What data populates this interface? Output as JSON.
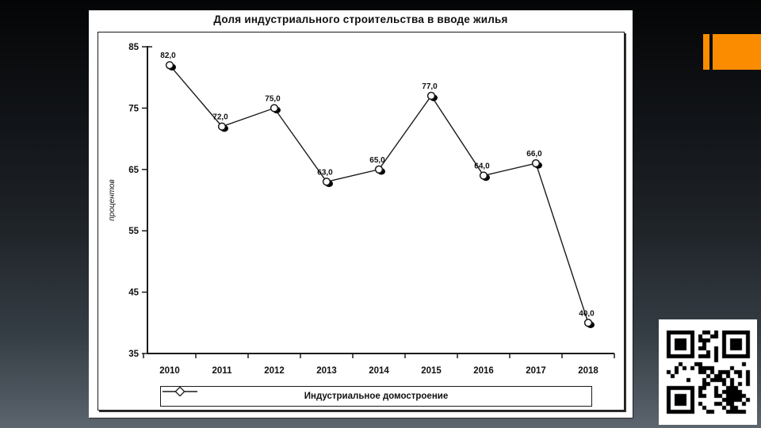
{
  "slide": {
    "accent_color": "#FB8C00",
    "card_background": "#ffffff",
    "background_top": "#040506",
    "background_bottom": "#5d666e"
  },
  "chart_data": {
    "type": "line",
    "title": "Доля индустриального строительства в вводе жилья",
    "xlabel": "",
    "ylabel": "процентов",
    "categories": [
      "2010",
      "2011",
      "2012",
      "2013",
      "2014",
      "2015",
      "2016",
      "2017",
      "2018"
    ],
    "series": [
      {
        "name": "Индустриальное домостроение",
        "values": [
          82.0,
          72.0,
          75.0,
          63.0,
          65.0,
          77.0,
          64.0,
          66.0,
          40.0
        ]
      }
    ],
    "data_labels": [
      "82,0",
      "72,0",
      "75,0",
      "63,0",
      "65,0",
      "77,0",
      "64,0",
      "66,0",
      "40,0"
    ],
    "ylim": [
      35,
      85
    ],
    "ytick_step": 10,
    "ytick_labels": [
      "85",
      "75",
      "65",
      "55",
      "45",
      "35"
    ],
    "grid": false,
    "legend_position": "bottom",
    "marker": "white-circle-with-shadow",
    "line_color": "#1a1a1a"
  },
  "icons": {
    "legend_marker": "line-diamond-line",
    "qr": "qr-code"
  }
}
